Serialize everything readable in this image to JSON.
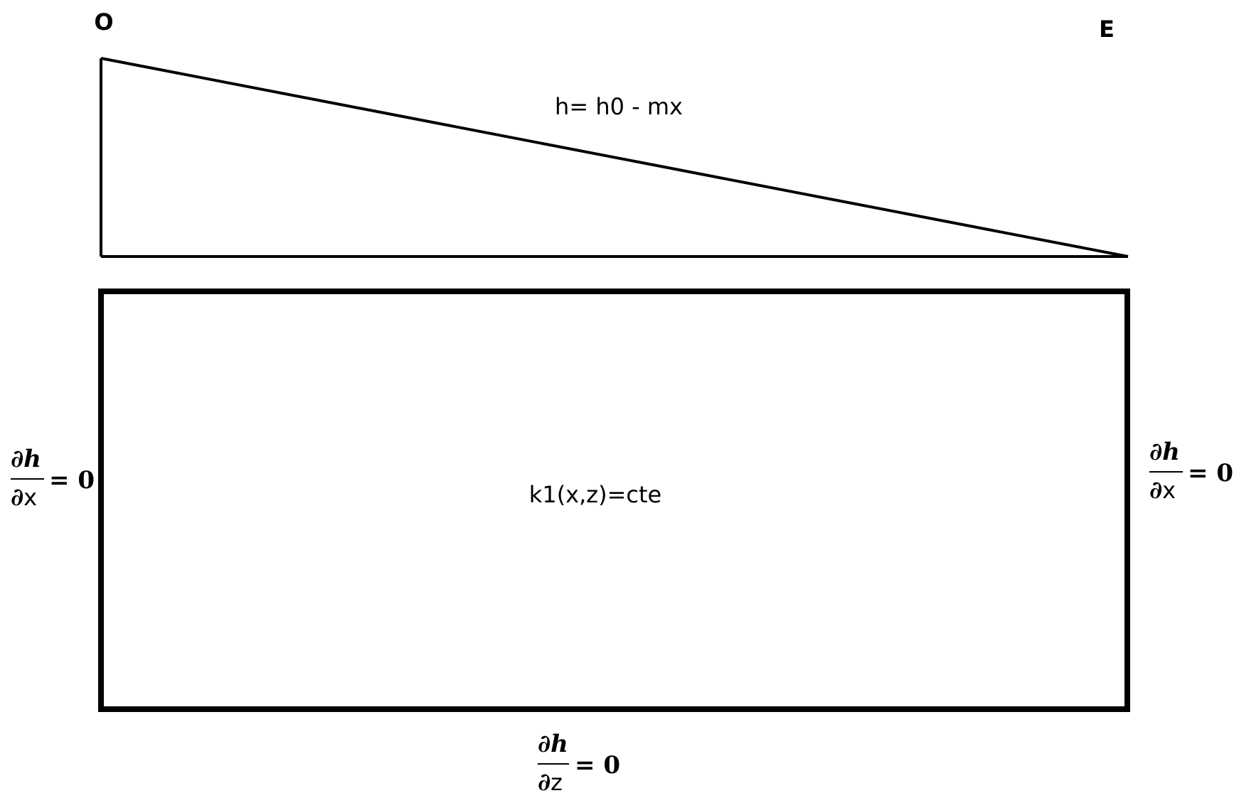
{
  "labels": {
    "origin": "O",
    "end": "E",
    "head_equation": "h= h0 - mx",
    "conductivity": "k1(x,z)=cte"
  },
  "boundary_conditions": {
    "left": {
      "numerator": "∂h",
      "partial": "∂",
      "variable": "x",
      "equals": "= 0"
    },
    "right": {
      "numerator": "∂h",
      "partial": "∂",
      "variable": "x",
      "equals": "= 0"
    },
    "bottom": {
      "numerator": "∂h",
      "partial": "∂",
      "variable": "z",
      "equals": "= 0"
    }
  }
}
